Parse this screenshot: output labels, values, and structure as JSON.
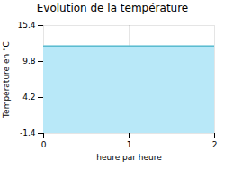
{
  "chart_data": {
    "type": "area",
    "title": "Evolution de la température",
    "xlabel": "heure par heure",
    "ylabel": "Température en °C",
    "x": [
      0,
      2
    ],
    "series": [
      {
        "type": "area",
        "color": "#b8e8f8",
        "values": [
          12.2,
          12.2
        ]
      },
      {
        "type": "line",
        "color": "#5bbcd0",
        "values": [
          12.2,
          12.2
        ]
      }
    ],
    "xlim": [
      0,
      2
    ],
    "xticks": [
      0,
      1,
      2
    ],
    "ylim": [
      -1.4,
      15.4
    ],
    "yticks": [
      -1.4,
      4.2,
      9.8,
      15.4
    ],
    "grid": true
  }
}
